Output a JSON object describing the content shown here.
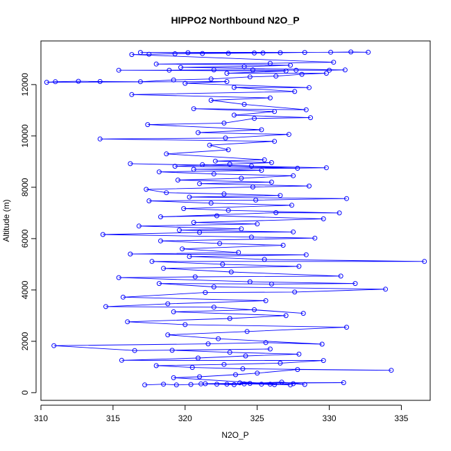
{
  "chart_data": {
    "type": "scatter",
    "title": "HIPPO2 Northbound N2O_P",
    "xlabel": "N2O_P",
    "ylabel": "Altitude (m)",
    "xlim": [
      310,
      337
    ],
    "ylim": [
      -300,
      13700
    ],
    "xticks": [
      310,
      315,
      320,
      325,
      330,
      335
    ],
    "yticks": [
      0,
      2000,
      4000,
      6000,
      8000,
      10000,
      12000
    ],
    "grid": false,
    "legend": "none",
    "color": "#0000ff",
    "series": [
      {
        "marker": "open-circle",
        "connected": true,
        "points": [
          [
            317.2,
            300
          ],
          [
            318.5,
            330
          ],
          [
            319.4,
            300
          ],
          [
            320.4,
            320
          ],
          [
            321.1,
            340
          ],
          [
            322.2,
            330
          ],
          [
            323.4,
            310
          ],
          [
            324.1,
            340
          ],
          [
            325.3,
            330
          ],
          [
            326.2,
            310
          ],
          [
            327.5,
            350
          ],
          [
            328.3,
            320
          ],
          [
            326.7,
            410
          ],
          [
            324.5,
            360
          ],
          [
            322.9,
            330
          ],
          [
            321.4,
            350
          ],
          [
            331.0,
            390
          ],
          [
            323.8,
            380
          ],
          [
            325.9,
            330
          ],
          [
            327.3,
            300
          ],
          [
            319.2,
            580
          ],
          [
            321.0,
            620
          ],
          [
            323.5,
            700
          ],
          [
            325.0,
            760
          ],
          [
            327.8,
            900
          ],
          [
            334.3,
            870
          ],
          [
            324.0,
            930
          ],
          [
            320.5,
            980
          ],
          [
            318.0,
            1050
          ],
          [
            322.7,
            1100
          ],
          [
            326.6,
            1150
          ],
          [
            329.6,
            1250
          ],
          [
            315.6,
            1260
          ],
          [
            320.9,
            1350
          ],
          [
            324.2,
            1430
          ],
          [
            327.9,
            1500
          ],
          [
            323.1,
            1570
          ],
          [
            319.1,
            1650
          ],
          [
            325.9,
            1700
          ],
          [
            316.5,
            1640
          ],
          [
            310.9,
            1830
          ],
          [
            321.6,
            1900
          ],
          [
            325.6,
            1950
          ],
          [
            329.5,
            1890
          ],
          [
            322.3,
            2100
          ],
          [
            318.8,
            2250
          ],
          [
            324.3,
            2380
          ],
          [
            331.2,
            2550
          ],
          [
            320.0,
            2650
          ],
          [
            316.0,
            2760
          ],
          [
            323.1,
            2890
          ],
          [
            327.0,
            3000
          ],
          [
            319.2,
            3150
          ],
          [
            324.8,
            3230
          ],
          [
            328.2,
            3090
          ],
          [
            322.0,
            3330
          ],
          [
            314.5,
            3350
          ],
          [
            318.8,
            3460
          ],
          [
            325.6,
            3580
          ],
          [
            315.7,
            3720
          ],
          [
            321.4,
            3900
          ],
          [
            327.6,
            3920
          ],
          [
            333.9,
            4030
          ],
          [
            322.0,
            4120
          ],
          [
            318.2,
            4250
          ],
          [
            326.0,
            4230
          ],
          [
            331.8,
            4250
          ],
          [
            324.5,
            4320
          ],
          [
            315.4,
            4480
          ],
          [
            320.7,
            4510
          ],
          [
            330.8,
            4540
          ],
          [
            323.2,
            4700
          ],
          [
            318.5,
            4840
          ],
          [
            327.9,
            4920
          ],
          [
            322.6,
            5000
          ],
          [
            317.7,
            5110
          ],
          [
            336.6,
            5110
          ],
          [
            325.5,
            5190
          ],
          [
            320.3,
            5300
          ],
          [
            328.4,
            5370
          ],
          [
            316.2,
            5400
          ],
          [
            323.7,
            5460
          ],
          [
            319.8,
            5600
          ],
          [
            326.8,
            5740
          ],
          [
            322.4,
            5810
          ],
          [
            318.3,
            5910
          ],
          [
            329.0,
            6020
          ],
          [
            324.6,
            6060
          ],
          [
            314.3,
            6160
          ],
          [
            321.0,
            6240
          ],
          [
            327.5,
            6260
          ],
          [
            319.6,
            6330
          ],
          [
            323.9,
            6380
          ],
          [
            316.8,
            6490
          ],
          [
            325.0,
            6570
          ],
          [
            320.6,
            6630
          ],
          [
            329.6,
            6770
          ],
          [
            322.2,
            6890
          ],
          [
            318.3,
            6850
          ],
          [
            326.3,
            7010
          ],
          [
            330.7,
            7000
          ],
          [
            323.0,
            7100
          ],
          [
            319.9,
            7170
          ],
          [
            327.4,
            7300
          ],
          [
            321.8,
            7380
          ],
          [
            317.5,
            7470
          ],
          [
            324.9,
            7500
          ],
          [
            331.2,
            7560
          ],
          [
            320.3,
            7620
          ],
          [
            326.6,
            7680
          ],
          [
            322.7,
            7740
          ],
          [
            318.7,
            7790
          ],
          [
            317.3,
            7920
          ],
          [
            324.7,
            8010
          ],
          [
            328.6,
            8050
          ],
          [
            321.0,
            8140
          ],
          [
            326.0,
            8200
          ],
          [
            319.5,
            8280
          ],
          [
            323.9,
            8350
          ],
          [
            327.5,
            8450
          ],
          [
            322.0,
            8520
          ],
          [
            318.2,
            8600
          ],
          [
            325.3,
            8660
          ],
          [
            320.6,
            8700
          ],
          [
            329.8,
            8760
          ],
          [
            316.2,
            8920
          ],
          [
            324.6,
            8830
          ],
          [
            321.2,
            8880
          ],
          [
            327.8,
            8740
          ],
          [
            319.3,
            8820
          ],
          [
            323.1,
            8900
          ],
          [
            326.0,
            8960
          ],
          [
            322.1,
            9020
          ],
          [
            325.5,
            9070
          ],
          [
            318.7,
            9300
          ],
          [
            323.0,
            9460
          ],
          [
            321.7,
            9640
          ],
          [
            326.2,
            9790
          ],
          [
            314.1,
            9880
          ],
          [
            322.8,
            9920
          ],
          [
            327.2,
            10060
          ],
          [
            320.9,
            10130
          ],
          [
            325.3,
            10240
          ],
          [
            317.4,
            10440
          ],
          [
            322.7,
            10500
          ],
          [
            324.8,
            10680
          ],
          [
            328.7,
            10710
          ],
          [
            323.4,
            10810
          ],
          [
            326.2,
            10950
          ],
          [
            320.6,
            11060
          ],
          [
            328.4,
            11020
          ],
          [
            324.1,
            11230
          ],
          [
            321.8,
            11390
          ],
          [
            325.9,
            11480
          ],
          [
            316.3,
            11610
          ],
          [
            327.6,
            11730
          ],
          [
            323.4,
            11890
          ],
          [
            328.6,
            11880
          ],
          [
            320.0,
            12050
          ],
          [
            322.9,
            12120
          ],
          [
            310.4,
            12090
          ],
          [
            311.0,
            12110
          ],
          [
            312.6,
            12130
          ],
          [
            314.1,
            12120
          ],
          [
            316.9,
            12110
          ],
          [
            319.2,
            12180
          ],
          [
            321.8,
            12220
          ],
          [
            324.5,
            12300
          ],
          [
            326.3,
            12330
          ],
          [
            328.1,
            12400
          ],
          [
            329.8,
            12440
          ],
          [
            322.9,
            12440
          ],
          [
            327.0,
            12530
          ],
          [
            315.4,
            12560
          ],
          [
            318.9,
            12560
          ],
          [
            322.0,
            12570
          ],
          [
            324.7,
            12570
          ],
          [
            327.7,
            12560
          ],
          [
            330.0,
            12560
          ],
          [
            331.1,
            12570
          ],
          [
            319.7,
            12670
          ],
          [
            324.1,
            12700
          ],
          [
            327.3,
            12750
          ],
          [
            318.0,
            12800
          ],
          [
            325.9,
            12830
          ],
          [
            330.3,
            12870
          ],
          [
            316.3,
            13170
          ],
          [
            317.5,
            13180
          ],
          [
            319.3,
            13200
          ],
          [
            321.2,
            13210
          ],
          [
            323.0,
            13220
          ],
          [
            324.8,
            13230
          ],
          [
            326.6,
            13240
          ],
          [
            328.3,
            13250
          ],
          [
            330.1,
            13260
          ],
          [
            331.5,
            13270
          ],
          [
            332.7,
            13260
          ],
          [
            316.9,
            13250
          ],
          [
            320.2,
            13240
          ],
          [
            325.4,
            13230
          ]
        ]
      }
    ]
  }
}
